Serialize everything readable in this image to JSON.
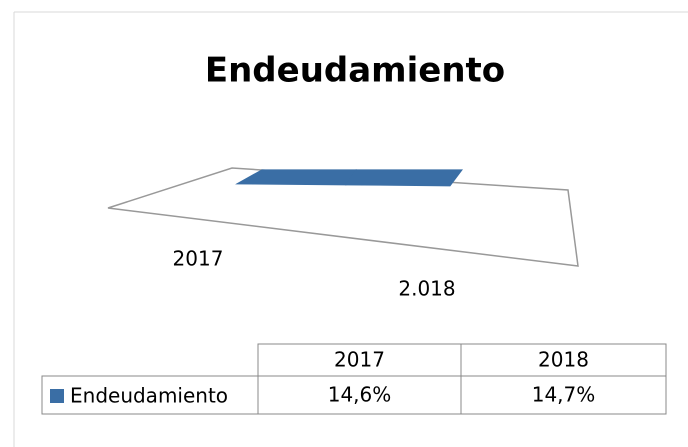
{
  "chart_data": {
    "type": "bar3d",
    "title": "Endeudamiento",
    "categories": [
      "2017",
      "2.018"
    ],
    "series": [
      {
        "name": "Endeudamiento",
        "color": "#3a6ea5",
        "values": [
          14.6,
          14.7
        ],
        "value_labels": [
          "14,6%",
          "14,7%"
        ]
      }
    ],
    "table_columns": [
      "2017",
      "2018"
    ]
  }
}
